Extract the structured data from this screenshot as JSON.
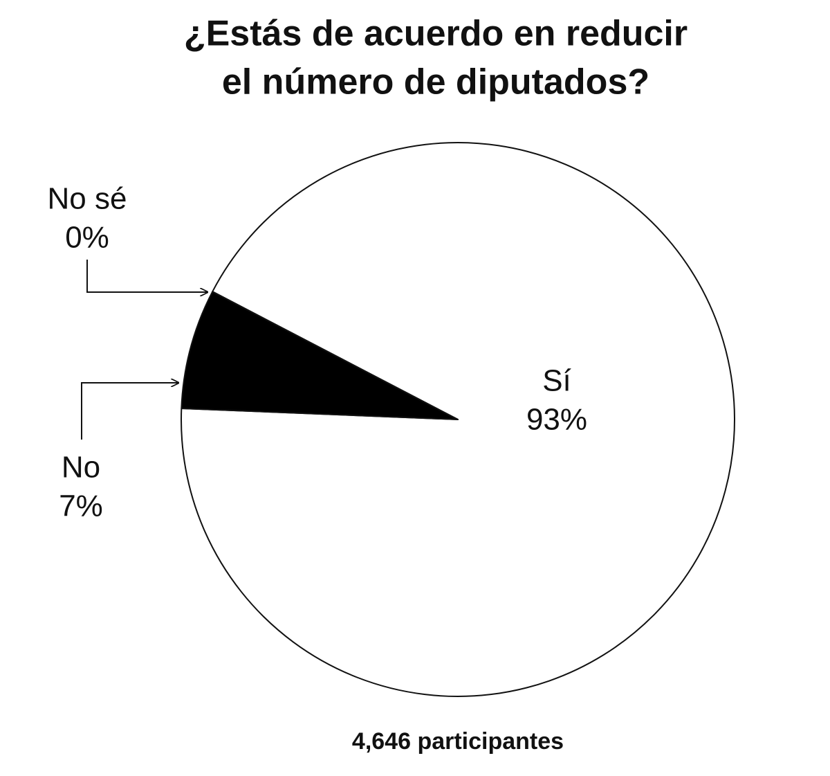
{
  "chart_data": {
    "type": "pie",
    "title": [
      "¿Estás de acuerdo en reducir",
      "el número de diputados?"
    ],
    "categories": [
      "Sí",
      "No",
      "No sé"
    ],
    "values": [
      93,
      7,
      0
    ],
    "value_labels": [
      "93%",
      "7%",
      "0%"
    ],
    "colors": [
      "#ffffff",
      "#000000",
      "#000000"
    ],
    "annotation": "4,646 participantes"
  }
}
